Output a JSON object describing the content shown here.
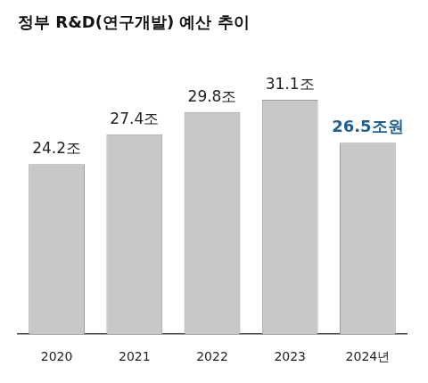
{
  "chart_data": {
    "type": "bar",
    "title": "정부 R&D(연구개발) 예산 추이",
    "categories": [
      "2020",
      "2021",
      "2022",
      "2023",
      "2024년"
    ],
    "values": [
      24.2,
      27.4,
      29.8,
      31.1,
      26.5
    ],
    "value_labels": [
      "24.2조",
      "27.4조",
      "29.8조",
      "31.1조",
      "26.5조원"
    ],
    "color": "#c8c8c8",
    "ylim": [
      6,
      34
    ],
    "grid": false,
    "data_labels": true,
    "tick_labels": "x"
  }
}
